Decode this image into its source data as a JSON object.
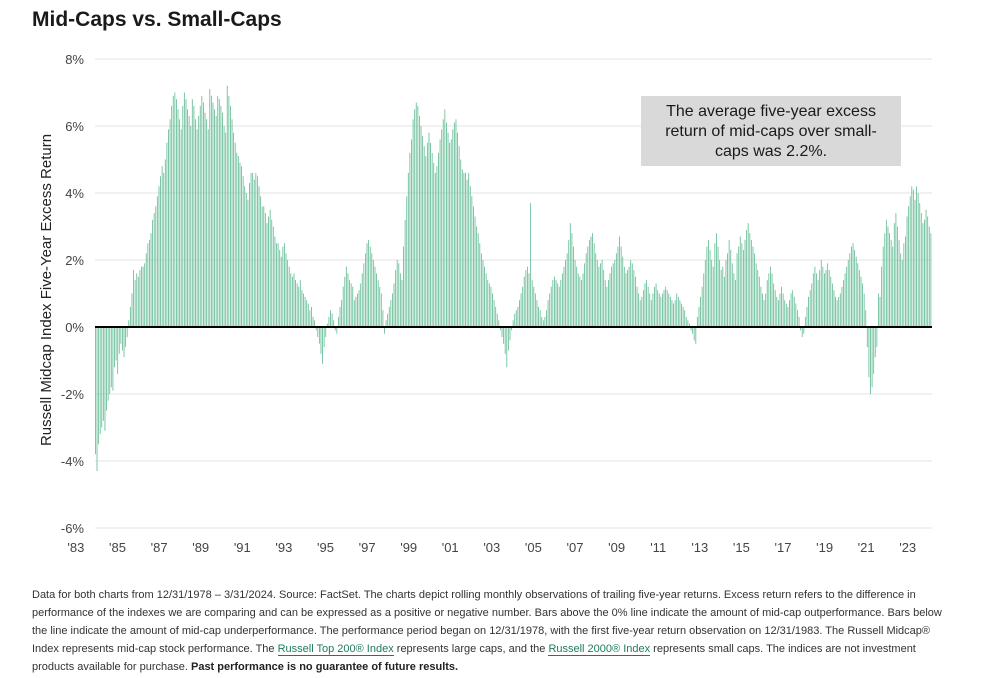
{
  "chart_data": {
    "type": "bar",
    "title": "Mid-Caps vs. Small-Caps",
    "ylabel": "Russell Midcap Index Five-Year Excess Return",
    "xlabel": "",
    "ylim": [
      -6,
      8
    ],
    "yticks": [
      "8%",
      "6%",
      "4%",
      "2%",
      "0%",
      "-2%",
      "-4%",
      "-6%"
    ],
    "ytick_values": [
      8,
      6,
      4,
      2,
      0,
      -2,
      -4,
      -6
    ],
    "xticks": [
      "'83",
      "'85",
      "'87",
      "'89",
      "'91",
      "'93",
      "'95",
      "'97",
      "'99",
      "'01",
      "'03",
      "'05",
      "'07",
      "'09",
      "'11",
      "'13",
      "'15",
      "'17",
      "'19",
      "'21",
      "'23"
    ],
    "xtick_years": [
      1983,
      1985,
      1987,
      1989,
      1991,
      1993,
      1995,
      1997,
      1999,
      2001,
      2003,
      2005,
      2007,
      2009,
      2011,
      2013,
      2015,
      2017,
      2019,
      2021,
      2023
    ],
    "x_start": "1983-12",
    "x_end": "2024-03",
    "frequency": "monthly",
    "bar_color": "#6bbf9a",
    "zero_line_color": "#000000",
    "grid": true,
    "values": [
      -3.8,
      -4.3,
      -3.5,
      -3.2,
      -3.0,
      -2.8,
      -3.1,
      -2.5,
      -2.2,
      -2.0,
      -1.8,
      -1.9,
      -1.2,
      -1.0,
      -1.4,
      -0.8,
      -0.5,
      -0.7,
      -0.9,
      -0.6,
      -0.3,
      0.2,
      0.6,
      1.0,
      1.7,
      1.4,
      1.6,
      1.5,
      1.7,
      1.8,
      1.8,
      1.9,
      2.2,
      2.5,
      2.6,
      2.8,
      3.2,
      3.4,
      3.6,
      3.9,
      4.2,
      4.5,
      4.8,
      4.6,
      5.0,
      5.5,
      5.9,
      6.2,
      6.6,
      6.9,
      7.0,
      6.8,
      6.5,
      6.2,
      5.9,
      6.6,
      7.0,
      6.8,
      6.5,
      6.3,
      6.0,
      6.8,
      6.6,
      6.2,
      5.9,
      6.3,
      6.6,
      6.9,
      6.7,
      6.4,
      6.2,
      5.9,
      7.1,
      6.9,
      6.7,
      6.5,
      6.3,
      6.9,
      6.8,
      6.6,
      6.4,
      6.0,
      5.8,
      7.2,
      6.9,
      6.6,
      6.2,
      5.8,
      5.5,
      5.2,
      5.1,
      4.9,
      4.8,
      4.5,
      4.2,
      4.0,
      3.8,
      4.3,
      4.6,
      4.6,
      4.4,
      4.6,
      4.5,
      4.2,
      3.9,
      3.6,
      3.6,
      3.4,
      3.1,
      3.3,
      3.5,
      3.2,
      3.0,
      2.7,
      2.5,
      2.5,
      2.3,
      2.1,
      2.4,
      2.5,
      2.2,
      2.0,
      1.8,
      1.6,
      1.5,
      1.6,
      1.4,
      1.3,
      1.2,
      1.4,
      1.1,
      1.0,
      0.9,
      0.8,
      0.7,
      0.5,
      0.6,
      0.3,
      0.2,
      -0.1,
      -0.3,
      -0.5,
      -0.8,
      -1.1,
      -0.6,
      -0.3,
      0.1,
      0.3,
      0.5,
      0.4,
      0.2,
      -0.1,
      -0.2,
      0.3,
      0.6,
      0.8,
      1.2,
      1.5,
      1.8,
      1.6,
      1.4,
      1.3,
      1.2,
      0.8,
      0.9,
      1.0,
      1.1,
      1.3,
      1.6,
      1.9,
      2.2,
      2.5,
      2.6,
      2.4,
      2.2,
      2.0,
      1.8,
      1.6,
      1.4,
      1.2,
      1.0,
      0.5,
      -0.2,
      0.2,
      0.4,
      0.6,
      0.8,
      1.0,
      1.3,
      1.7,
      2.0,
      1.9,
      1.6,
      1.4,
      2.4,
      3.2,
      3.9,
      4.6,
      5.2,
      5.6,
      6.2,
      6.5,
      6.7,
      6.6,
      6.3,
      6.0,
      5.7,
      5.4,
      5.1,
      5.5,
      5.8,
      5.5,
      5.2,
      4.9,
      4.6,
      4.8,
      5.2,
      5.6,
      5.9,
      6.2,
      6.5,
      6.1,
      5.8,
      5.5,
      5.6,
      5.9,
      6.1,
      6.2,
      5.8,
      5.4,
      5.0,
      4.7,
      4.6,
      4.6,
      4.4,
      4.6,
      4.2,
      3.9,
      3.6,
      3.3,
      3.0,
      2.8,
      2.5,
      2.2,
      2.0,
      1.8,
      1.6,
      1.4,
      1.3,
      1.2,
      1.0,
      0.8,
      0.6,
      0.4,
      0.2,
      -0.1,
      -0.3,
      -0.5,
      -0.8,
      -1.2,
      -0.7,
      -0.4,
      -0.1,
      0.2,
      0.4,
      0.5,
      0.6,
      0.8,
      1.0,
      1.2,
      1.5,
      1.7,
      1.8,
      1.6,
      3.7,
      1.4,
      1.2,
      1.0,
      0.8,
      0.6,
      0.5,
      0.3,
      0.2,
      0.3,
      0.5,
      0.8,
      1.0,
      1.2,
      1.4,
      1.5,
      1.4,
      1.3,
      1.2,
      1.4,
      1.6,
      1.8,
      2.0,
      2.2,
      2.6,
      3.1,
      2.8,
      2.4,
      2.0,
      1.8,
      1.6,
      1.5,
      1.4,
      1.6,
      1.9,
      2.2,
      2.4,
      2.6,
      2.7,
      2.8,
      2.5,
      2.2,
      2.0,
      1.8,
      1.9,
      2.0,
      1.7,
      1.4,
      1.2,
      1.4,
      1.6,
      1.8,
      1.9,
      2.0,
      2.2,
      2.4,
      2.7,
      2.4,
      2.1,
      1.8,
      1.6,
      1.7,
      1.8,
      2.0,
      1.9,
      1.7,
      1.5,
      1.2,
      1.0,
      0.8,
      0.9,
      1.1,
      1.3,
      1.4,
      1.2,
      1.0,
      0.8,
      1.0,
      1.2,
      1.3,
      1.1,
      1.0,
      0.9,
      1.0,
      1.1,
      1.2,
      1.1,
      1.0,
      0.9,
      0.8,
      0.7,
      0.8,
      1.0,
      0.9,
      0.8,
      0.7,
      0.6,
      0.5,
      0.3,
      0.2,
      0.1,
      -0.1,
      -0.2,
      -0.4,
      -0.5,
      0.3,
      0.6,
      0.9,
      1.2,
      1.6,
      2.0,
      2.4,
      2.6,
      2.3,
      2.0,
      1.8,
      2.5,
      2.8,
      2.4,
      2.0,
      1.7,
      1.8,
      1.5,
      2.0,
      2.2,
      2.6,
      2.3,
      1.9,
      1.6,
      1.4,
      2.2,
      2.4,
      2.7,
      2.5,
      2.3,
      2.6,
      2.9,
      3.1,
      2.8,
      2.6,
      2.4,
      2.2,
      1.9,
      1.7,
      1.5,
      1.2,
      1.0,
      0.8,
      1.0,
      1.4,
      1.6,
      1.8,
      1.6,
      1.3,
      1.1,
      0.9,
      0.8,
      1.0,
      1.2,
      1.0,
      0.8,
      0.7,
      0.6,
      0.8,
      1.0,
      1.1,
      0.9,
      0.7,
      0.5,
      0.3,
      -0.1,
      -0.3,
      -0.2,
      0.3,
      0.6,
      0.9,
      1.1,
      1.3,
      1.6,
      1.8,
      1.6,
      1.4,
      1.7,
      2.0,
      1.8,
      1.6,
      1.7,
      1.9,
      1.7,
      1.5,
      1.3,
      1.1,
      0.9,
      0.8,
      0.9,
      1.0,
      1.2,
      1.4,
      1.6,
      1.8,
      2.0,
      2.2,
      2.4,
      2.5,
      2.3,
      2.1,
      1.9,
      1.7,
      1.5,
      1.3,
      1.0,
      0.5,
      -0.6,
      -1.5,
      -2.0,
      -1.8,
      -1.4,
      -0.9,
      -0.6,
      1.0,
      0.9,
      1.8,
      2.4,
      2.8,
      3.2,
      3.0,
      2.8,
      2.6,
      2.4,
      3.1,
      3.4,
      3.0,
      2.6,
      2.2,
      2.0,
      2.5,
      2.7,
      3.3,
      3.6,
      3.9,
      4.2,
      4.1,
      3.8,
      4.2,
      4.0,
      3.7,
      3.4,
      3.1,
      3.2,
      3.5,
      3.3,
      3.0,
      2.8
    ]
  },
  "callout": {
    "line1": "The average five-year excess",
    "line2": "return of mid-caps over small-",
    "line3": "caps was 2.2%."
  },
  "footnote": {
    "part1": "Data for both charts from 12/31/1978 – 3/31/2024. Source: FactSet. The charts depict rolling monthly observations of trailing five-year returns. Excess return refers to the difference in performance of the indexes we are comparing and can be expressed as a positive or negative number. Bars above the 0% line indicate the amount of mid-cap outperformance. Bars below the line indicate the amount of mid-cap underperformance. The performance period began on 12/31/1978, with the first five-year return observation on 12/31/1983. The Russell Midcap® Index represents mid-cap stock performance. The ",
    "link1": "Russell Top 200® Index",
    "part2": " represents large caps, and the ",
    "link2": "Russell 2000® Index",
    "part3": " represents small caps. The indices are not investment products available for purchase. ",
    "bold": "Past performance is no guarantee of future results."
  }
}
